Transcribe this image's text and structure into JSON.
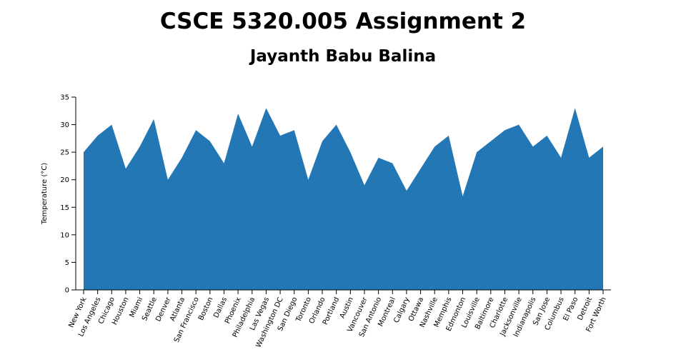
{
  "title": "CSCE 5320.005 Assignment 2",
  "subtitle": "Jayanth Babu Balina",
  "chart_data": {
    "type": "area",
    "title": "CSCE 5320.005 Assignment 2",
    "subtitle": "Jayanth Babu Balina",
    "xlabel": "",
    "ylabel": "Temperature (°C)",
    "ylim": [
      0,
      35
    ],
    "yticks": [
      0,
      5,
      10,
      15,
      20,
      25,
      30,
      35
    ],
    "grid": false,
    "legend": "none",
    "fill_color": "#2277b4",
    "categories": [
      "New York",
      "Los Angeles",
      "Chicago",
      "Houston",
      "Miami",
      "Seattle",
      "Denver",
      "Atlanta",
      "San Francisco",
      "Boston",
      "Dallas",
      "Phoenix",
      "Philadelphia",
      "Las Vegas",
      "Washington DC",
      "San Diego",
      "Toronto",
      "Orlando",
      "Portland",
      "Austin",
      "Vancouver",
      "San Antonio",
      "Montreal",
      "Calgary",
      "Ottawa",
      "Nashville",
      "Memphis",
      "Edmonton",
      "Louisville",
      "Baltimore",
      "Charlotte",
      "Jacksonville",
      "Indianapolis",
      "San Jose",
      "Columbus",
      "El Paso",
      "Detroit",
      "Fort Worth"
    ],
    "values": [
      25,
      28,
      30,
      22,
      26,
      31,
      20,
      24,
      29,
      27,
      23,
      32,
      26,
      33,
      28,
      29,
      20,
      27,
      30,
      25,
      19,
      24,
      23,
      18,
      22,
      26,
      28,
      17,
      25,
      27,
      29,
      30,
      26,
      28,
      24,
      33,
      24,
      26
    ]
  }
}
